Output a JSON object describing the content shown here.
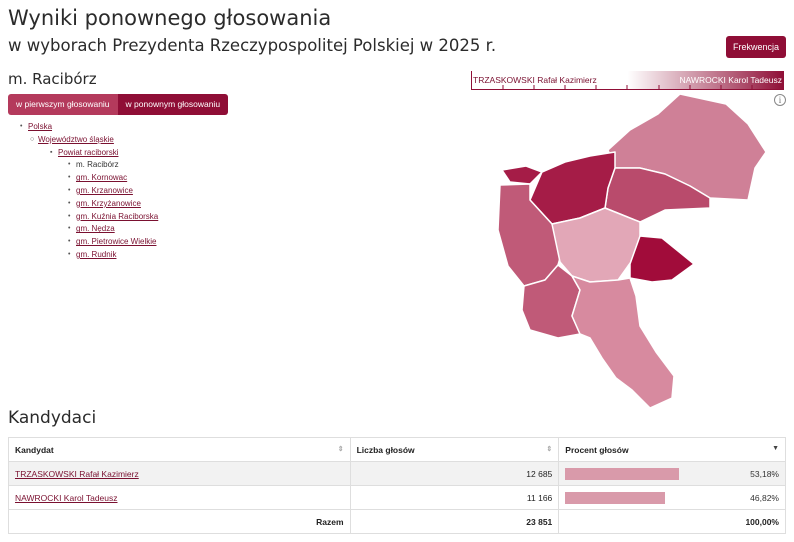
{
  "header": {
    "title": "Wyniki ponownego głosowania",
    "subtitle": "w wyborach Prezydenta Rzeczypospolitej Polskiej w 2025 r.",
    "frekwencja_label": "Frekwencja"
  },
  "place": "m. Racibórz",
  "tabs": {
    "first": "w pierwszym głosowaniu",
    "second": "w ponownym głosowaniu"
  },
  "tree": {
    "country": "Polska",
    "voivodeship": "Województwo śląskie",
    "county": "Powiat raciborski",
    "items": [
      "m. Racibórz",
      "gm. Kornowac",
      "gm. Krzanowice",
      "gm. Krzyżanowice",
      "gm. Kuźnia Raciborska",
      "gm. Nędza",
      "gm. Pietrowice Wielkie",
      "gm. Rudnik"
    ]
  },
  "legend": {
    "left": "TRZASKOWSKI Rafał Kazimierz",
    "right": "NAWROCKI Karol Tadeusz"
  },
  "colors": {
    "accent": "#8f0e36",
    "tab_inactive": "#b43a5c",
    "bar": "#d99aaa"
  },
  "section_title": "Kandydaci",
  "table": {
    "headers": {
      "candidate": "Kandydat",
      "votes": "Liczba głosów",
      "percent": "Procent głosów"
    },
    "rows": [
      {
        "name": "TRZASKOWSKI Rafał Kazimierz",
        "votes": "12 685",
        "percent": "53,18%",
        "share": 53.18
      },
      {
        "name": "NAWROCKI Karol Tadeusz",
        "votes": "11 166",
        "percent": "46,82%",
        "share": 46.82
      }
    ],
    "total": {
      "label": "Razem",
      "votes": "23 851",
      "percent": "100,00%"
    }
  },
  "icons": {
    "info": "info-icon",
    "sort": "sort-icon",
    "sort_desc": "sort-desc-icon"
  }
}
